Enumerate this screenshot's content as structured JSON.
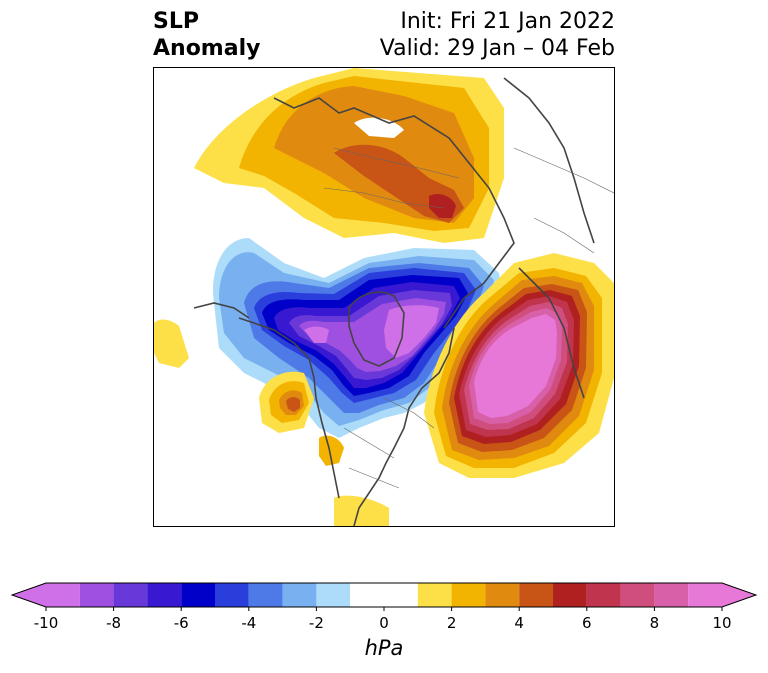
{
  "title": {
    "left_line1": "SLP",
    "left_line2": "Anomaly",
    "right_line1": "Init: Fri 21 Jan 2022",
    "right_line2": "Valid: 29 Jan – 04 Feb"
  },
  "colorbar": {
    "units": "hPa",
    "min": -10,
    "max": 10,
    "ticks": [
      {
        "value": -10,
        "label": "-10"
      },
      {
        "value": -8,
        "label": "-8"
      },
      {
        "value": -6,
        "label": "-6"
      },
      {
        "value": -4,
        "label": "-4"
      },
      {
        "value": -2,
        "label": "-2"
      },
      {
        "value": 0,
        "label": "0"
      },
      {
        "value": 2,
        "label": "2"
      },
      {
        "value": 4,
        "label": "4"
      },
      {
        "value": 6,
        "label": "6"
      },
      {
        "value": 8,
        "label": "8"
      },
      {
        "value": 10,
        "label": "10"
      }
    ],
    "under_color": "#d070e8",
    "over_color": "#e878d8",
    "bins": [
      {
        "from": -10,
        "to": -9,
        "color": "#d070e8"
      },
      {
        "from": -9,
        "to": -8,
        "color": "#a050e0"
      },
      {
        "from": -8,
        "to": -7,
        "color": "#6838d8"
      },
      {
        "from": -7,
        "to": -6,
        "color": "#3818d0"
      },
      {
        "from": -6,
        "to": -5,
        "color": "#0000c8"
      },
      {
        "from": -5,
        "to": -4,
        "color": "#2a3edc"
      },
      {
        "from": -4,
        "to": -3,
        "color": "#4e7ae8"
      },
      {
        "from": -3,
        "to": -2,
        "color": "#78b0f0"
      },
      {
        "from": -2,
        "to": -1,
        "color": "#acdcfa"
      },
      {
        "from": -1,
        "to": 1,
        "color": "#ffffff"
      },
      {
        "from": 1,
        "to": 2,
        "color": "#fde047"
      },
      {
        "from": 2,
        "to": 3,
        "color": "#f2b400"
      },
      {
        "from": 3,
        "to": 4,
        "color": "#e08a10"
      },
      {
        "from": 4,
        "to": 5,
        "color": "#c85416"
      },
      {
        "from": 5,
        "to": 6,
        "color": "#b02020"
      },
      {
        "from": 6,
        "to": 7,
        "color": "#c0344e"
      },
      {
        "from": 7,
        "to": 8,
        "color": "#d04e7e"
      },
      {
        "from": 8,
        "to": 9,
        "color": "#d860a8"
      },
      {
        "from": 9,
        "to": 10,
        "color": "#e878d8"
      }
    ]
  },
  "map_regions": [
    {
      "name": "eurasia-high",
      "anomaly_levels": [
        1,
        2,
        3,
        4,
        5
      ]
    },
    {
      "name": "north-pacific-low",
      "anomaly_levels": [
        -2,
        -3,
        -4,
        -5,
        -6,
        -7,
        -8,
        -9,
        -10
      ]
    },
    {
      "name": "north-atlantic-high",
      "anomaly_levels": [
        1,
        2,
        3,
        4,
        5,
        6,
        7,
        8,
        9,
        10
      ]
    },
    {
      "name": "pacific-northwest-high",
      "anomaly_levels": [
        1,
        2,
        3,
        4
      ]
    }
  ]
}
